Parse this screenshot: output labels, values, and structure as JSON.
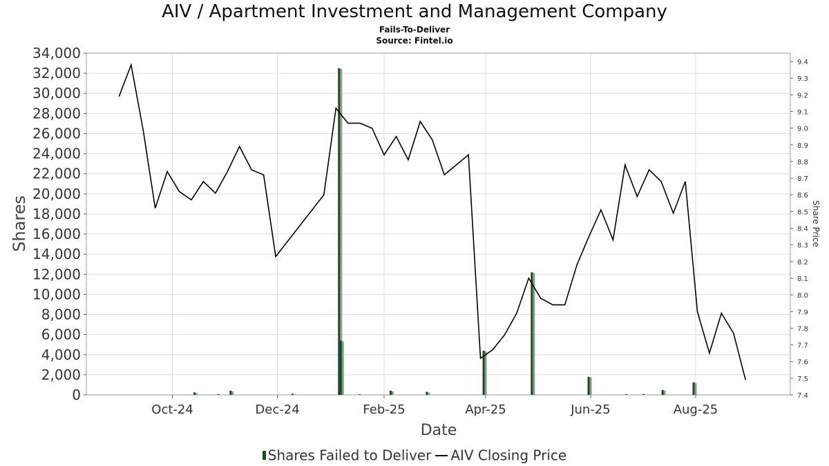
{
  "title": "AIV / Apartment Investment and Management Company",
  "subtitle": "Fails-To-Deliver",
  "source": "Source: Fintel.io",
  "legend": {
    "bar_label": "Shares Failed to Deliver",
    "line_label": "AIV Closing Price"
  },
  "colors": {
    "bar": "#1f4a2a",
    "bar_shadow": "#8a9a8a",
    "line": "#000000",
    "grid": "#dddddd"
  },
  "chart_data": {
    "type": "bar",
    "title": "AIV / Apartment Investment and Management Company",
    "xlabel": "Date",
    "ylabel": "Shares",
    "y2label": "Share Price",
    "ylim": [
      0,
      34000
    ],
    "y2lim": [
      7.4,
      9.45
    ],
    "yticks": [
      "0",
      "2,000",
      "4,000",
      "6,000",
      "8,000",
      "10,000",
      "12,000",
      "14,000",
      "16,000",
      "18,000",
      "20,000",
      "22,000",
      "24,000",
      "26,000",
      "28,000",
      "30,000",
      "32,000",
      "34,000"
    ],
    "y2ticks": [
      "7.4",
      "7.5",
      "7.6",
      "7.7",
      "7.8",
      "7.9",
      "8.0",
      "8.1",
      "8.2",
      "8.3",
      "8.4",
      "8.5",
      "8.6",
      "8.7",
      "8.8",
      "8.9",
      "9.0",
      "9.1",
      "9.2",
      "9.3",
      "9.4"
    ],
    "xlim": [
      "2024-08-12",
      "2025-09-25"
    ],
    "xticks": [
      {
        "date": "2024-10-01",
        "label": "Oct-24"
      },
      {
        "date": "2024-12-01",
        "label": "Dec-24"
      },
      {
        "date": "2025-02-01",
        "label": "Feb-25"
      },
      {
        "date": "2025-04-01",
        "label": "Apr-25"
      },
      {
        "date": "2025-06-01",
        "label": "Jun-25"
      },
      {
        "date": "2025-08-01",
        "label": "Aug-25"
      }
    ],
    "grid": true,
    "legend_position": "bottom",
    "series": [
      {
        "name": "Shares Failed to Deliver",
        "type": "bar",
        "points": [
          {
            "date": "2024-10-14",
            "value": 250
          },
          {
            "date": "2024-10-28",
            "value": 80
          },
          {
            "date": "2024-11-04",
            "value": 420
          },
          {
            "date": "2024-12-10",
            "value": 120
          },
          {
            "date": "2025-01-06",
            "value": 32500
          },
          {
            "date": "2025-01-07",
            "value": 5400
          },
          {
            "date": "2025-01-18",
            "value": 60
          },
          {
            "date": "2025-02-05",
            "value": 420
          },
          {
            "date": "2025-02-26",
            "value": 300
          },
          {
            "date": "2025-03-31",
            "value": 4400
          },
          {
            "date": "2025-04-28",
            "value": 12200
          },
          {
            "date": "2025-05-31",
            "value": 1800
          },
          {
            "date": "2025-06-22",
            "value": 80
          },
          {
            "date": "2025-07-02",
            "value": 80
          },
          {
            "date": "2025-07-13",
            "value": 500
          },
          {
            "date": "2025-07-31",
            "value": 1250
          }
        ]
      },
      {
        "name": "AIV Closing Price",
        "type": "line",
        "points": [
          {
            "date": "2024-08-31",
            "value": 9.19
          },
          {
            "date": "2024-09-07",
            "value": 9.38
          },
          {
            "date": "2024-09-14",
            "value": 8.99
          },
          {
            "date": "2024-09-21",
            "value": 8.52
          },
          {
            "date": "2024-09-28",
            "value": 8.74
          },
          {
            "date": "2024-10-05",
            "value": 8.62
          },
          {
            "date": "2024-10-12",
            "value": 8.57
          },
          {
            "date": "2024-10-19",
            "value": 8.68
          },
          {
            "date": "2024-10-26",
            "value": 8.61
          },
          {
            "date": "2024-11-02",
            "value": 8.74
          },
          {
            "date": "2024-11-09",
            "value": 8.89
          },
          {
            "date": "2024-11-16",
            "value": 8.75
          },
          {
            "date": "2024-11-23",
            "value": 8.72
          },
          {
            "date": "2024-11-30",
            "value": 8.23
          },
          {
            "date": "2024-12-28",
            "value": 8.6
          },
          {
            "date": "2025-01-04",
            "value": 9.12
          },
          {
            "date": "2025-01-11",
            "value": 9.03
          },
          {
            "date": "2025-01-18",
            "value": 9.03
          },
          {
            "date": "2025-01-25",
            "value": 9.0
          },
          {
            "date": "2025-02-01",
            "value": 8.84
          },
          {
            "date": "2025-02-08",
            "value": 8.95
          },
          {
            "date": "2025-02-15",
            "value": 8.81
          },
          {
            "date": "2025-02-22",
            "value": 9.04
          },
          {
            "date": "2025-03-01",
            "value": 8.93
          },
          {
            "date": "2025-03-08",
            "value": 8.72
          },
          {
            "date": "2025-03-22",
            "value": 8.84
          },
          {
            "date": "2025-03-29",
            "value": 7.62
          },
          {
            "date": "2025-04-05",
            "value": 7.67
          },
          {
            "date": "2025-04-12",
            "value": 7.76
          },
          {
            "date": "2025-04-19",
            "value": 7.89
          },
          {
            "date": "2025-04-26",
            "value": 8.1
          },
          {
            "date": "2025-05-03",
            "value": 7.98
          },
          {
            "date": "2025-05-10",
            "value": 7.94
          },
          {
            "date": "2025-05-17",
            "value": 7.94
          },
          {
            "date": "2025-05-24",
            "value": 8.18
          },
          {
            "date": "2025-05-31",
            "value": 8.35
          },
          {
            "date": "2025-06-07",
            "value": 8.51
          },
          {
            "date": "2025-06-14",
            "value": 8.33
          },
          {
            "date": "2025-06-21",
            "value": 8.78
          },
          {
            "date": "2025-06-28",
            "value": 8.59
          },
          {
            "date": "2025-07-05",
            "value": 8.75
          },
          {
            "date": "2025-07-12",
            "value": 8.68
          },
          {
            "date": "2025-07-19",
            "value": 8.49
          },
          {
            "date": "2025-07-26",
            "value": 8.68
          },
          {
            "date": "2025-08-02",
            "value": 7.9
          },
          {
            "date": "2025-08-09",
            "value": 7.65
          },
          {
            "date": "2025-08-16",
            "value": 7.89
          },
          {
            "date": "2025-08-23",
            "value": 7.77
          },
          {
            "date": "2025-08-30",
            "value": 7.49
          }
        ]
      }
    ]
  }
}
